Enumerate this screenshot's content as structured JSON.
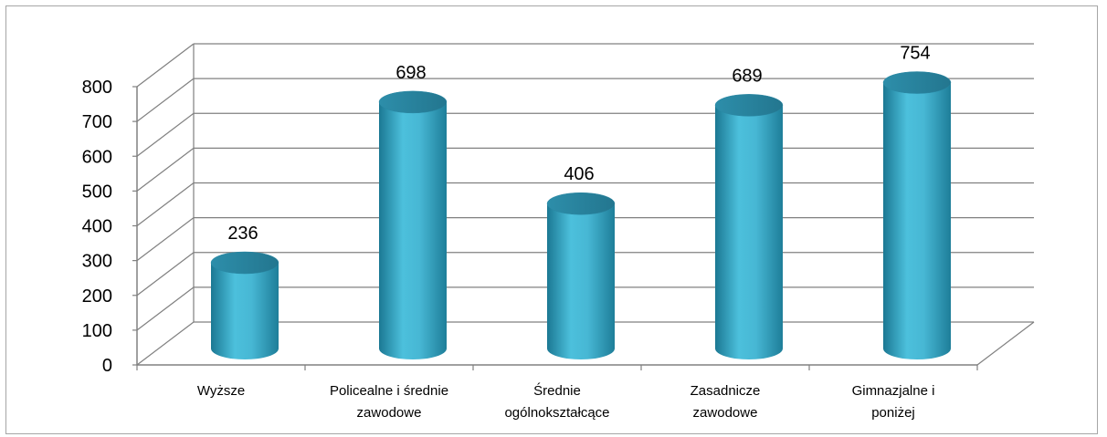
{
  "chart_data": {
    "type": "bar",
    "style": "3d-cylinder",
    "categories": [
      [
        "Wyższe"
      ],
      [
        "Policealne i średnie",
        "zawodowe"
      ],
      [
        "Średnie",
        "ogólnokształcące"
      ],
      [
        "Zasadnicze",
        "zawodowe"
      ],
      [
        "Gimnazjalne i",
        "poniżej"
      ]
    ],
    "values": [
      236,
      698,
      406,
      689,
      754
    ],
    "data_labels": [
      "236",
      "698",
      "406",
      "689",
      "754"
    ],
    "ylim": [
      0,
      800
    ],
    "yticks": [
      "0",
      "100",
      "200",
      "300",
      "400",
      "500",
      "600",
      "700",
      "800"
    ],
    "grid": true,
    "legend": "none",
    "colors": {
      "bar_body": "#3aa9c8",
      "bar_top": "#2b87a3",
      "gridline": "#808080",
      "axis": "#808080"
    }
  }
}
